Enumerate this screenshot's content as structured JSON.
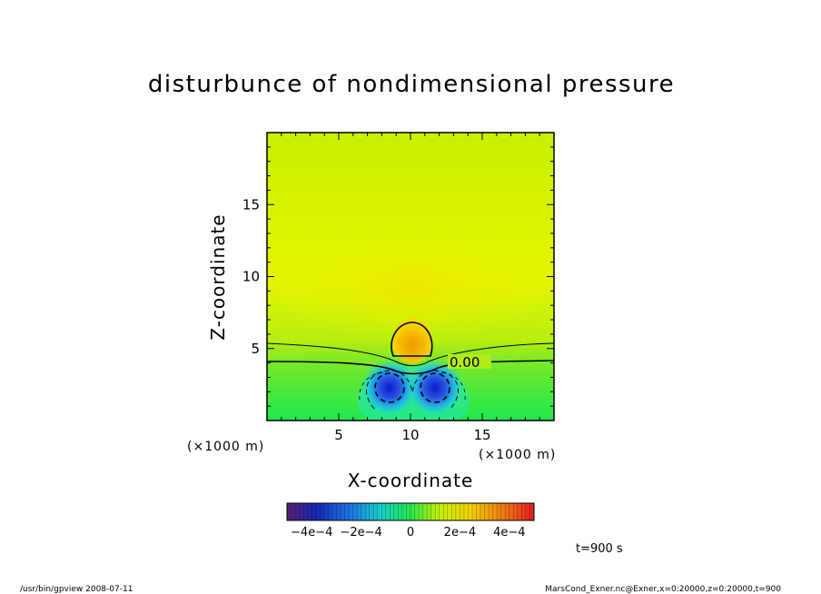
{
  "chart_data": {
    "type": "heatmap",
    "title": "disturbunce of nondimensional pressure",
    "xlabel": "X-coordinate",
    "ylabel": "Z-coordinate",
    "x_units": "(×1000 m)",
    "z_units": "(×1000 m)",
    "xlim": [
      0,
      20
    ],
    "ylim": [
      0,
      20
    ],
    "x_ticks": [
      "5",
      "10",
      "15"
    ],
    "x_tick_values": [
      5,
      10,
      15
    ],
    "y_ticks": [
      "5",
      "10",
      "15"
    ],
    "y_tick_values": [
      5,
      10,
      15
    ],
    "contour_label": "0.00",
    "features": [
      {
        "name": "positive anomaly (bubble)",
        "x": 10.0,
        "z": 5.5,
        "value": 0.0003
      },
      {
        "name": "negative anomaly (left)",
        "x": 8.5,
        "z": 2.3,
        "value": -0.0005
      },
      {
        "name": "negative anomaly (right)",
        "x": 11.7,
        "z": 2.3,
        "value": -0.0005
      }
    ],
    "colorbar": {
      "range": [
        -0.0005,
        0.0005
      ],
      "tick_labels": [
        "−4e−4",
        "−2e−4",
        "0",
        "2e−4",
        "4e−4"
      ],
      "tick_values": [
        -0.0004,
        -0.0002,
        0,
        0.0002,
        0.0004
      ]
    },
    "time_label": "t=900 s"
  },
  "footer": {
    "left": "/usr/bin/gpview   2008-07-11",
    "right": "MarsCond_Exner.nc@Exner,x=0:20000,z=0:20000,t=900"
  },
  "colors": {
    "background": "#e8f200",
    "positive": "#f2a800",
    "negative": "#1e32d2",
    "near_zero": "#1eeb50"
  }
}
